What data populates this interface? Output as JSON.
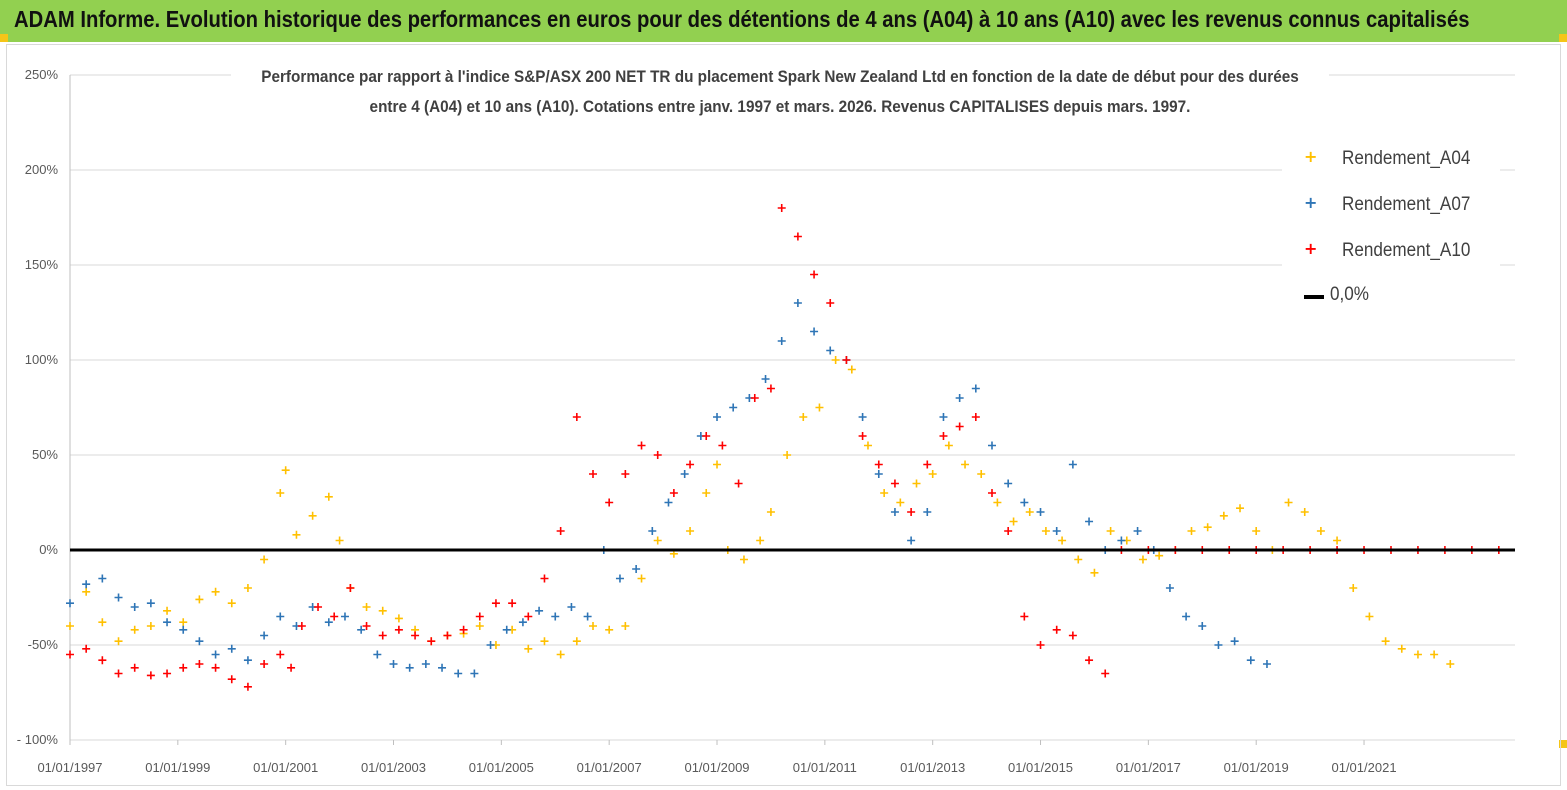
{
  "banner": {
    "title": "ADAM Informe. Evolution historique des performances en euros pour des détentions de 4 ans (A04) à 10 ans (A10) avec les revenus connus capitalisés",
    "background": "#92d050"
  },
  "chart_data": {
    "type": "scatter",
    "title_line1": "Performance par rapport à l'indice S&P/ASX 200 NET TR  du placement Spark New Zealand Ltd en fonction de la date de début pour des durées",
    "title_line2": "entre 4 (A04) et 10 ans (A10). Cotations entre janv. 1997 et mars. 2026. Revenus CAPITALISES depuis mars. 1997.",
    "xlabel": "",
    "ylabel": "",
    "ylim": [
      -100,
      250
    ],
    "y_ticks": [
      "250%",
      "200%",
      "150%",
      "100%",
      "50%",
      "0%",
      "-50%",
      "- 100%"
    ],
    "x_ticks": [
      "01/01/1997",
      "01/01/1999",
      "01/01/2001",
      "01/01/2003",
      "01/01/2005",
      "01/01/2007",
      "01/01/2009",
      "01/01/2011",
      "01/01/2013",
      "01/01/2015",
      "01/01/2017",
      "01/01/2019",
      "01/01/2021"
    ],
    "xlim": [
      1997.0,
      2023.8
    ],
    "grid": "horizontal",
    "legend_position": "top-right",
    "series": [
      {
        "name": "Rendement_A04",
        "color": "#ffc000",
        "marker": "+",
        "x": [
          1997.0,
          1997.3,
          1997.6,
          1997.9,
          1998.2,
          1998.5,
          1998.8,
          1999.1,
          1999.4,
          1999.7,
          2000.0,
          2000.3,
          2000.6,
          2000.9,
          2001.0,
          2001.2,
          2001.5,
          2001.8,
          2002.0,
          2002.2,
          2002.5,
          2002.8,
          2003.1,
          2003.4,
          2003.7,
          2004.0,
          2004.3,
          2004.6,
          2004.9,
          2005.2,
          2005.5,
          2005.8,
          2006.1,
          2006.4,
          2006.7,
          2007.0,
          2007.3,
          2007.6,
          2007.9,
          2008.2,
          2008.5,
          2008.8,
          2009.0,
          2009.2,
          2009.5,
          2009.8,
          2010.0,
          2010.3,
          2010.6,
          2010.9,
          2011.2,
          2011.5,
          2011.8,
          2012.1,
          2012.4,
          2012.7,
          2013.0,
          2013.3,
          2013.6,
          2013.9,
          2014.2,
          2014.5,
          2014.8,
          2015.1,
          2015.4,
          2015.7,
          2016.0,
          2016.3,
          2016.6,
          2016.9,
          2017.2,
          2017.5,
          2017.8,
          2018.1,
          2018.4,
          2018.7,
          2019.0,
          2019.3,
          2019.6,
          2019.9,
          2020.2,
          2020.5,
          2020.8,
          2021.1,
          2021.4,
          2021.7,
          2022.0,
          2022.3,
          2022.6
        ],
        "y": [
          -40,
          -22,
          -38,
          -48,
          -42,
          -40,
          -32,
          -38,
          -26,
          -22,
          -28,
          -20,
          -5,
          30,
          42,
          8,
          18,
          28,
          5,
          -20,
          -30,
          -32,
          -36,
          -42,
          -48,
          -45,
          -44,
          -40,
          -50,
          -42,
          -52,
          -48,
          -55,
          -48,
          -40,
          -42,
          -40,
          -15,
          5,
          -2,
          10,
          30,
          45,
          0,
          -5,
          5,
          20,
          50,
          70,
          75,
          100,
          95,
          55,
          30,
          25,
          35,
          40,
          55,
          45,
          40,
          25,
          15,
          20,
          10,
          5,
          -5,
          -12,
          10,
          5,
          -5,
          -3,
          0,
          10,
          12,
          18,
          22,
          10,
          0,
          25,
          20,
          10,
          5,
          -20,
          -35,
          -48,
          -52,
          -55,
          -55,
          -60
        ]
      },
      {
        "name": "Rendement_A07",
        "color": "#2e75b6",
        "marker": "+",
        "x": [
          1997.0,
          1997.3,
          1997.6,
          1997.9,
          1998.2,
          1998.5,
          1998.8,
          1999.1,
          1999.4,
          1999.7,
          2000.0,
          2000.3,
          2000.6,
          2000.9,
          2001.2,
          2001.5,
          2001.8,
          2002.1,
          2002.4,
          2002.7,
          2003.0,
          2003.3,
          2003.6,
          2003.9,
          2004.2,
          2004.5,
          2004.8,
          2005.1,
          2005.4,
          2005.7,
          2006.0,
          2006.3,
          2006.6,
          2006.9,
          2007.2,
          2007.5,
          2007.8,
          2008.1,
          2008.4,
          2008.7,
          2009.0,
          2009.3,
          2009.6,
          2009.9,
          2010.2,
          2010.5,
          2010.8,
          2011.1,
          2011.4,
          2011.7,
          2012.0,
          2012.3,
          2012.6,
          2012.9,
          2013.2,
          2013.5,
          2013.8,
          2014.1,
          2014.4,
          2014.7,
          2015.0,
          2015.3,
          2015.6,
          2015.9,
          2016.2,
          2016.5,
          2016.8,
          2017.1,
          2017.4,
          2017.7,
          2018.0,
          2018.3,
          2018.6,
          2018.9,
          2019.2
        ],
        "y": [
          -28,
          -18,
          -15,
          -25,
          -30,
          -28,
          -38,
          -42,
          -48,
          -55,
          -52,
          -58,
          -45,
          -35,
          -40,
          -30,
          -38,
          -35,
          -42,
          -55,
          -60,
          -62,
          -60,
          -62,
          -65,
          -65,
          -50,
          -42,
          -38,
          -32,
          -35,
          -30,
          -35,
          0,
          -15,
          -10,
          10,
          25,
          40,
          60,
          70,
          75,
          80,
          90,
          110,
          130,
          115,
          105,
          100,
          70,
          40,
          20,
          5,
          20,
          70,
          80,
          85,
          55,
          35,
          25,
          20,
          10,
          45,
          15,
          0,
          5,
          10,
          0,
          -20,
          -35,
          -40,
          -50,
          -48,
          -58,
          -60
        ]
      },
      {
        "name": "Rendement_A10",
        "color": "#ff0000",
        "marker": "+",
        "x": [
          1997.0,
          1997.3,
          1997.6,
          1997.9,
          1998.2,
          1998.5,
          1998.8,
          1999.1,
          1999.4,
          1999.7,
          2000.0,
          2000.3,
          2000.6,
          2000.9,
          2001.1,
          2001.3,
          2001.6,
          2001.9,
          2002.2,
          2002.5,
          2002.8,
          2003.1,
          2003.4,
          2003.7,
          2004.0,
          2004.3,
          2004.6,
          2004.9,
          2005.2,
          2005.5,
          2005.8,
          2006.1,
          2006.4,
          2006.7,
          2007.0,
          2007.3,
          2007.6,
          2007.9,
          2008.2,
          2008.5,
          2008.8,
          2009.1,
          2009.4,
          2009.7,
          2010.0,
          2010.2,
          2010.5,
          2010.8,
          2011.1,
          2011.4,
          2011.7,
          2012.0,
          2012.3,
          2012.6,
          2012.9,
          2013.2,
          2013.5,
          2013.8,
          2014.1,
          2014.4,
          2014.7,
          2015.0,
          2015.3,
          2015.6,
          2015.9,
          2016.2,
          2016.5,
          2017.0,
          2017.5,
          2018.0,
          2018.5,
          2019.0,
          2019.5,
          2020.0,
          2020.5,
          2021.0,
          2021.5,
          2022.0,
          2022.5,
          2023.0,
          2023.5
        ],
        "y": [
          -55,
          -52,
          -58,
          -65,
          -62,
          -66,
          -65,
          -62,
          -60,
          -62,
          -68,
          -72,
          -60,
          -55,
          -62,
          -40,
          -30,
          -35,
          -20,
          -40,
          -45,
          -42,
          -45,
          -48,
          -45,
          -42,
          -35,
          -28,
          -28,
          -35,
          -15,
          10,
          70,
          40,
          25,
          40,
          55,
          50,
          30,
          45,
          60,
          55,
          35,
          80,
          85,
          180,
          165,
          145,
          130,
          100,
          60,
          45,
          35,
          20,
          45,
          60,
          65,
          70,
          30,
          10,
          -35,
          -50,
          -42,
          -45,
          -58,
          -65,
          0,
          0,
          0,
          0,
          0,
          0,
          0,
          0,
          0,
          0,
          0,
          0,
          0,
          0,
          0
        ]
      },
      {
        "name": "0,0%",
        "color": "#000000",
        "marker": "line",
        "x": [
          1997.0,
          2023.8
        ],
        "y": [
          0,
          0
        ]
      }
    ]
  }
}
